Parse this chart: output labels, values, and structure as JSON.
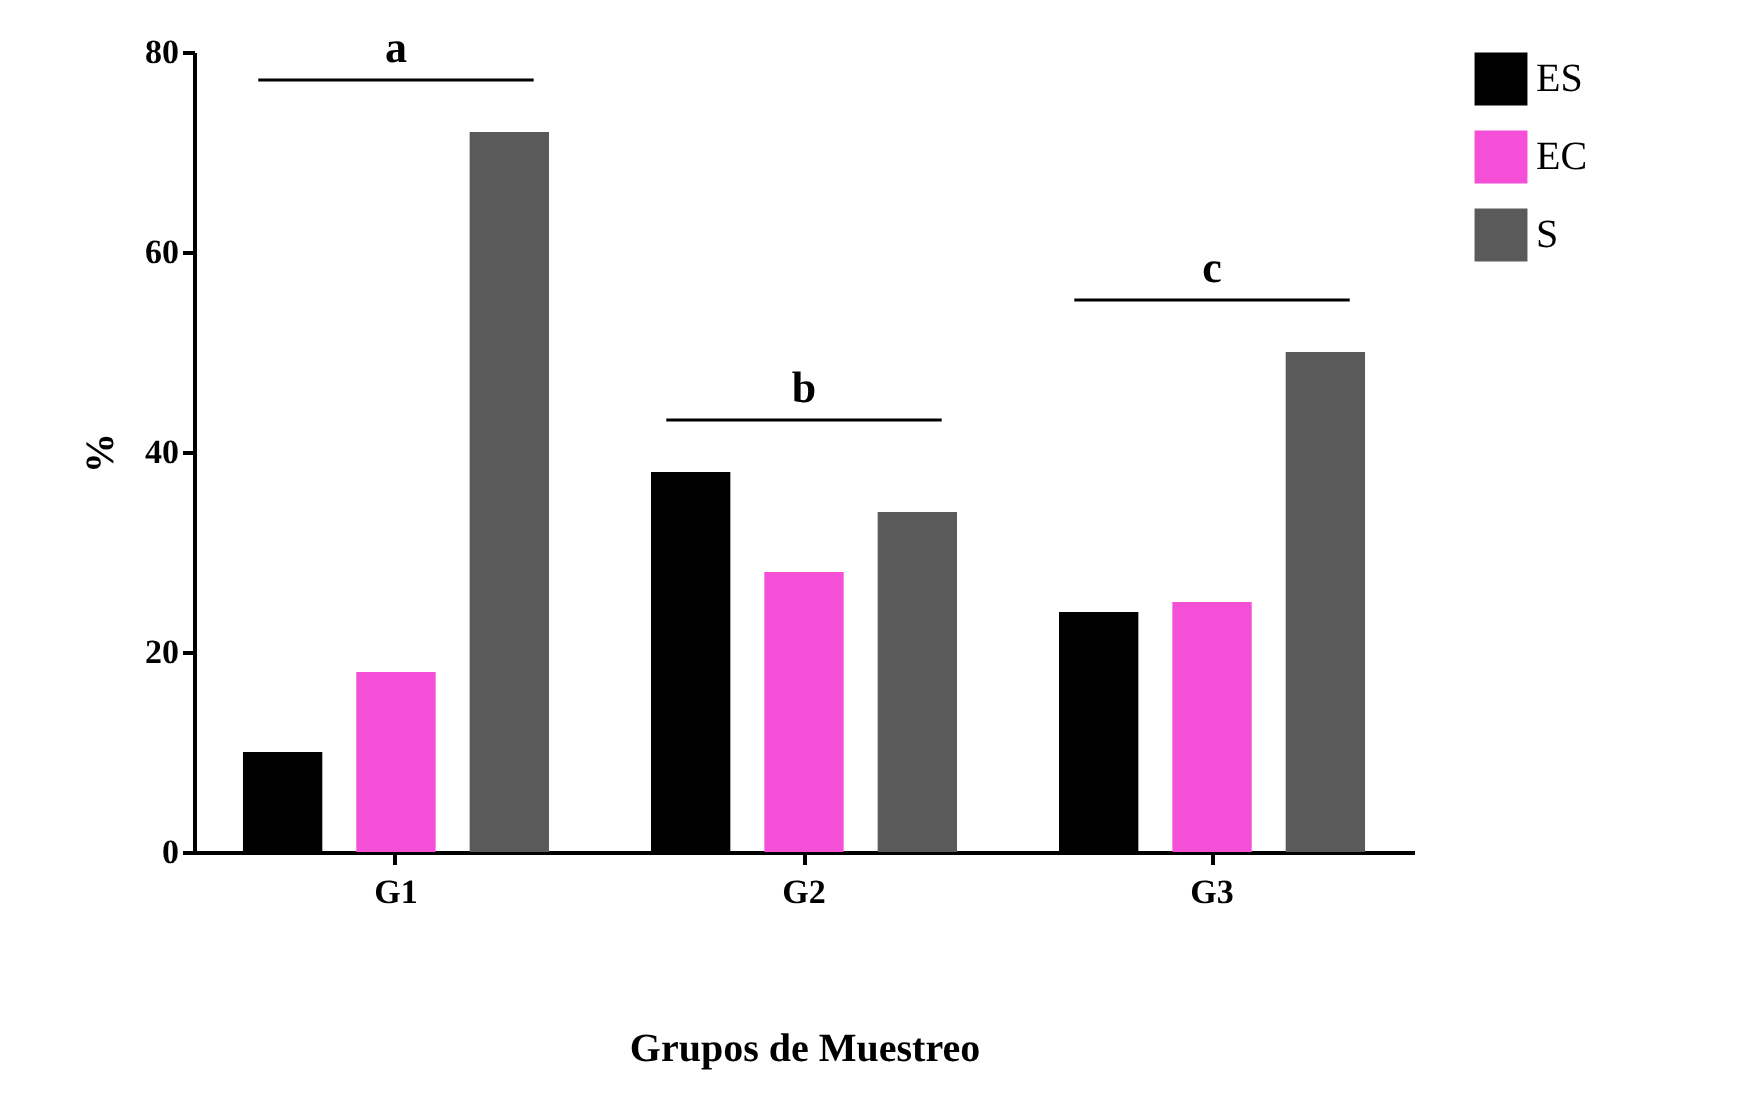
{
  "chart_data": {
    "type": "bar",
    "xlabel": "Grupos de Muestreo",
    "ylabel": "%",
    "categories": [
      "G1",
      "G2",
      "G3"
    ],
    "series": [
      {
        "name": "ES",
        "color": "#000000",
        "values": [
          10,
          38,
          24
        ]
      },
      {
        "name": "EC",
        "color": "#f54fd8",
        "values": [
          18,
          28,
          25
        ]
      },
      {
        "name": "S",
        "color": "#5a5a5a",
        "values": [
          72,
          34,
          50
        ]
      }
    ],
    "ylim": [
      0,
      80
    ],
    "yticks": [
      0,
      20,
      40,
      60,
      80
    ],
    "grid": false,
    "legend": "top right",
    "annotations": [
      "a",
      "b",
      "c"
    ]
  }
}
